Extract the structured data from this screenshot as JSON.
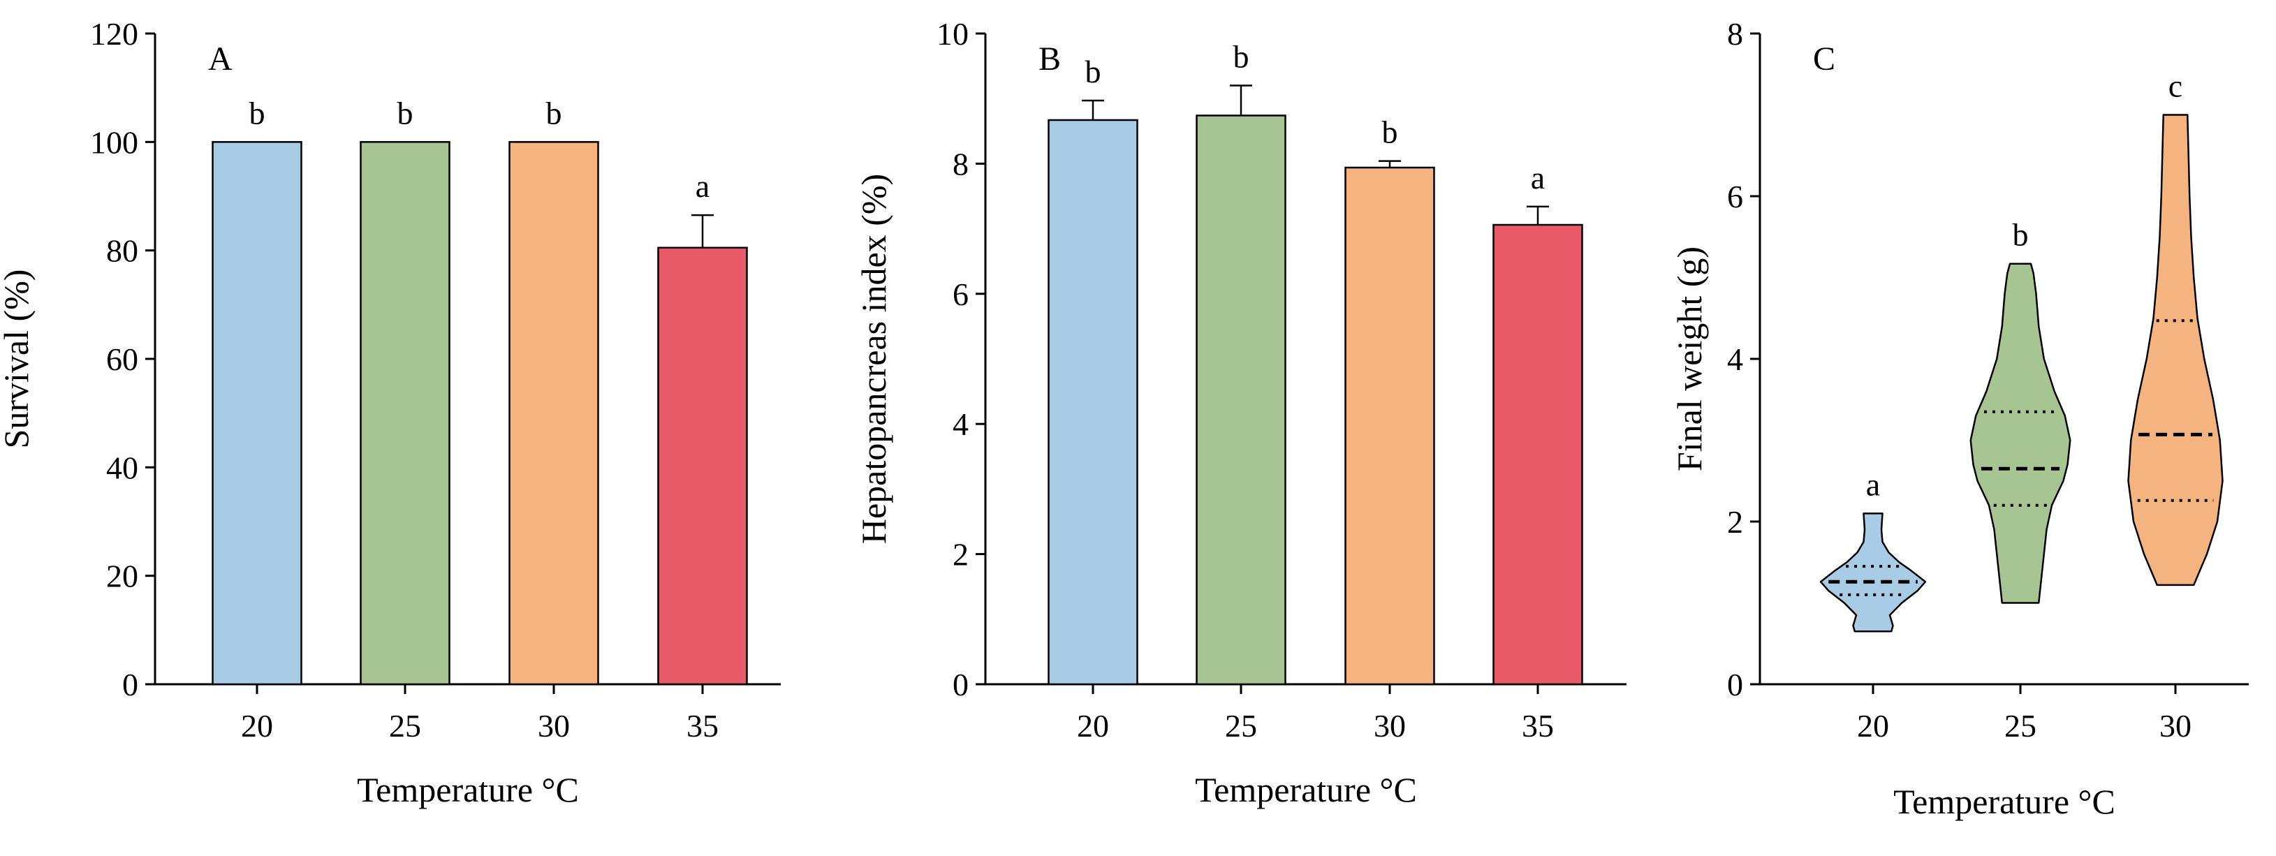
{
  "colors": {
    "t20": "#a8cbe6",
    "t25": "#a7c592",
    "t30": "#f5b47f",
    "t35": "#e85a68",
    "outline": "#000000"
  },
  "chart_data": [
    {
      "panel": "A",
      "type": "bar",
      "xlabel": "Temperature °C",
      "ylabel": "Survival (%)",
      "ylim": [
        0,
        120
      ],
      "yticks": [
        0,
        20,
        40,
        60,
        80,
        100,
        120
      ],
      "categories": [
        "20",
        "25",
        "30",
        "35"
      ],
      "values": [
        100,
        100,
        100,
        80.5
      ],
      "errors": [
        0,
        0,
        0,
        6
      ],
      "letters": [
        "b",
        "b",
        "b",
        "a"
      ],
      "colors": [
        "#a8cbe6",
        "#a7c592",
        "#f5b47f",
        "#e85a68"
      ]
    },
    {
      "panel": "B",
      "type": "bar",
      "xlabel": "Temperature °C",
      "ylabel": "Hepatopancreas index (%)",
      "ylim": [
        0,
        10
      ],
      "yticks": [
        0,
        2,
        4,
        6,
        8,
        10
      ],
      "categories": [
        "20",
        "25",
        "30",
        "35"
      ],
      "values": [
        8.67,
        8.74,
        7.94,
        7.06
      ],
      "errors": [
        0.3,
        0.46,
        0.1,
        0.28
      ],
      "letters": [
        "b",
        "b",
        "b",
        "a"
      ],
      "colors": [
        "#a8cbe6",
        "#a7c592",
        "#f5b47f",
        "#e85a68"
      ]
    },
    {
      "panel": "C",
      "type": "violin",
      "xlabel": "Temperature °C",
      "ylabel": "Final weight (g)",
      "ylim": [
        0,
        8
      ],
      "yticks": [
        0,
        2,
        4,
        6,
        8
      ],
      "categories": [
        "20",
        "25",
        "30"
      ],
      "letters": [
        "a",
        "b",
        "c"
      ],
      "colors": [
        "#a8cbe6",
        "#a7c592",
        "#f5b47f"
      ],
      "median": [
        1.26,
        2.65,
        3.07
      ],
      "q1": [
        1.1,
        2.2,
        2.26
      ],
      "q3": [
        1.45,
        3.35,
        4.47
      ],
      "min": [
        0.65,
        1.0,
        1.22
      ],
      "max": [
        2.1,
        5.17,
        7.0
      ],
      "density": [
        [
          [
            0.65,
            0.35
          ],
          [
            0.72,
            0.38
          ],
          [
            0.85,
            0.32
          ],
          [
            1.0,
            0.55
          ],
          [
            1.15,
            0.85
          ],
          [
            1.26,
            1.0
          ],
          [
            1.4,
            0.72
          ],
          [
            1.5,
            0.5
          ],
          [
            1.62,
            0.3
          ],
          [
            1.75,
            0.18
          ],
          [
            1.9,
            0.16
          ],
          [
            2.1,
            0.18
          ]
        ],
        [
          [
            1.0,
            0.35
          ],
          [
            1.3,
            0.4
          ],
          [
            1.6,
            0.45
          ],
          [
            1.9,
            0.5
          ],
          [
            2.2,
            0.6
          ],
          [
            2.5,
            0.82
          ],
          [
            2.7,
            0.9
          ],
          [
            3.0,
            0.95
          ],
          [
            3.3,
            0.85
          ],
          [
            3.6,
            0.65
          ],
          [
            4.0,
            0.45
          ],
          [
            4.4,
            0.35
          ],
          [
            4.8,
            0.3
          ],
          [
            5.05,
            0.25
          ],
          [
            5.17,
            0.2
          ]
        ],
        [
          [
            1.22,
            0.35
          ],
          [
            1.6,
            0.6
          ],
          [
            2.0,
            0.8
          ],
          [
            2.5,
            0.9
          ],
          [
            3.0,
            0.85
          ],
          [
            3.5,
            0.72
          ],
          [
            4.0,
            0.55
          ],
          [
            4.5,
            0.42
          ],
          [
            5.0,
            0.35
          ],
          [
            5.5,
            0.3
          ],
          [
            6.0,
            0.27
          ],
          [
            6.5,
            0.25
          ],
          [
            7.0,
            0.23
          ]
        ]
      ]
    }
  ]
}
